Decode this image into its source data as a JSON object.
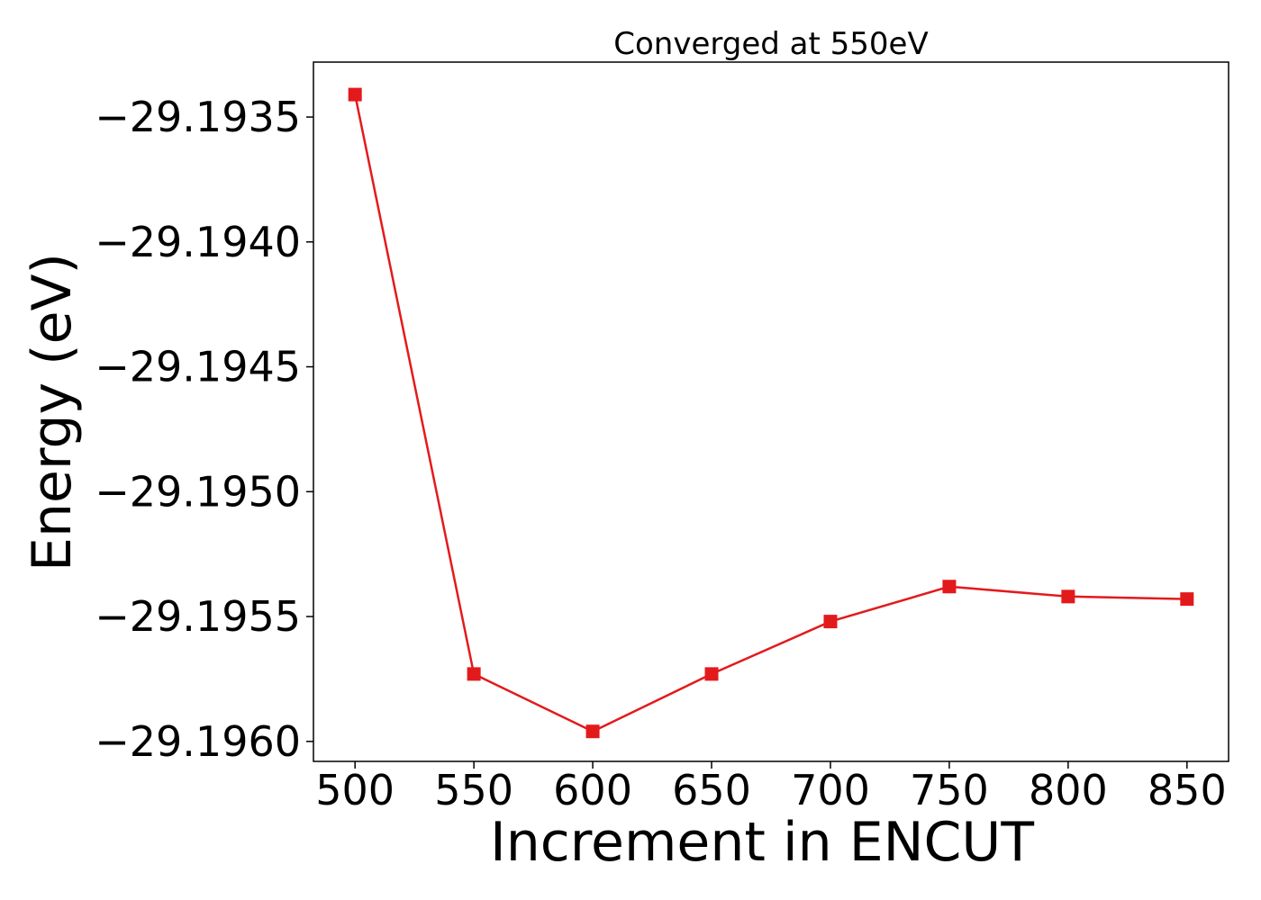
{
  "chart_data": {
    "type": "line",
    "title": "Converged at 550eV",
    "xlabel": "Increment in ENCUT",
    "ylabel": "Energy (eV)",
    "x": [
      500,
      550,
      600,
      650,
      700,
      750,
      800,
      850
    ],
    "series": [
      {
        "values": [
          -29.19341,
          -29.19573,
          -29.19596,
          -29.19573,
          -29.19552,
          -29.19538,
          -29.19542,
          -29.19543
        ],
        "color": "#e31a1c",
        "marker": "square"
      }
    ],
    "xticks": [
      500,
      550,
      600,
      650,
      700,
      750,
      800,
      850
    ],
    "xtick_labels": [
      "500",
      "550",
      "600",
      "650",
      "700",
      "750",
      "800",
      "850"
    ],
    "yticks": [
      -29.1935,
      -29.194,
      -29.1945,
      -29.195,
      -29.1955,
      -29.196
    ],
    "ytick_labels": [
      "−29.1935",
      "−29.1940",
      "−29.1945",
      "−29.1950",
      "−29.1955",
      "−29.1960"
    ],
    "xlim": [
      482.5,
      867.5
    ],
    "ylim": [
      -29.19608,
      -29.19328
    ],
    "grid": false,
    "legend": "none"
  }
}
